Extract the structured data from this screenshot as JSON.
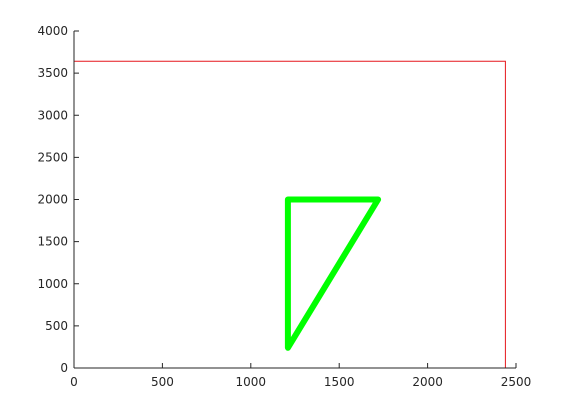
{
  "chart_data": {
    "type": "line",
    "title": "",
    "xlabel": "",
    "ylabel": "",
    "xlim": [
      0,
      2500
    ],
    "ylim": [
      0,
      4000
    ],
    "xticks": [
      "0",
      "500",
      "1000",
      "1500",
      "2000",
      "2500"
    ],
    "yticks": [
      "0",
      "500",
      "1000",
      "1500",
      "2000",
      "2500",
      "3000",
      "3500",
      "4000"
    ],
    "grid": false,
    "legend": "none",
    "series": [
      {
        "color": "#e6171c",
        "style": "thin",
        "x": [
          0,
          2440,
          2440,
          0,
          0
        ],
        "y": [
          0,
          0,
          3640,
          3640,
          0
        ]
      },
      {
        "color": "#00ff00",
        "style": "thick",
        "x": [
          1210,
          1720,
          1210,
          1210
        ],
        "y": [
          2000,
          2000,
          240,
          2000
        ]
      }
    ]
  }
}
